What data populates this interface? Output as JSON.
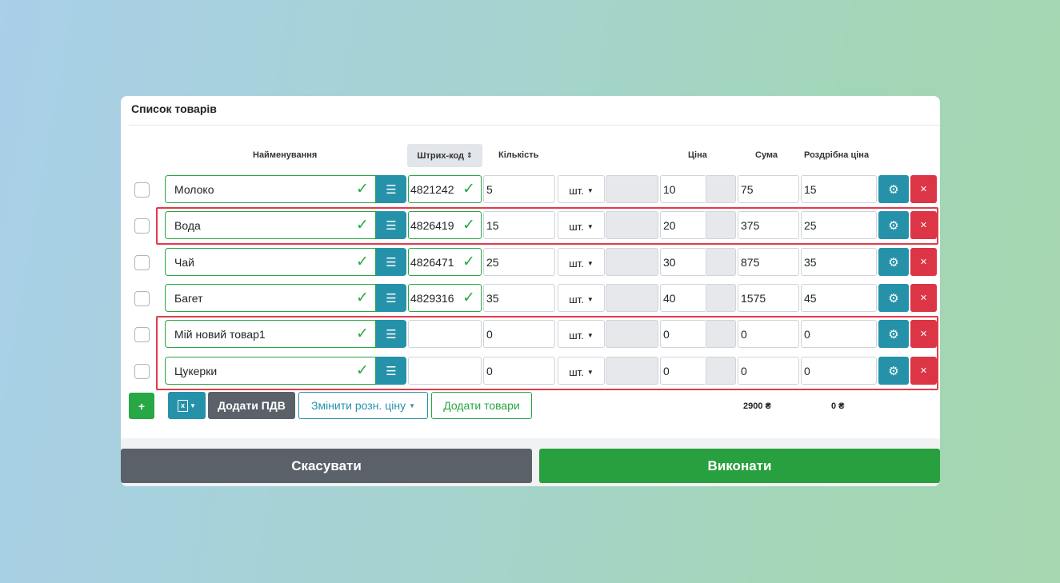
{
  "panel": {
    "title": "Список товарів"
  },
  "headers": {
    "name": "Найменування",
    "barcode": "Штрих-код",
    "quantity": "Кількість",
    "price": "Ціна",
    "sum": "Сума",
    "retail_price": "Роздрібна ціна"
  },
  "rows": [
    {
      "name": "Молоко",
      "barcode": "4821242",
      "quantity": "5",
      "unit": "шт.",
      "price": "10",
      "sum": "75",
      "retail": "15"
    },
    {
      "name": "Вода",
      "barcode": "4826419",
      "quantity": "15",
      "unit": "шт.",
      "price": "20",
      "sum": "375",
      "retail": "25"
    },
    {
      "name": "Чай",
      "barcode": "4826471",
      "quantity": "25",
      "unit": "шт.",
      "price": "30",
      "sum": "875",
      "retail": "35"
    },
    {
      "name": "Багет",
      "barcode": "4829316",
      "quantity": "35",
      "unit": "шт.",
      "price": "40",
      "sum": "1575",
      "retail": "45"
    },
    {
      "name": "Мій новий товар1",
      "barcode": "",
      "quantity": "0",
      "unit": "шт.",
      "price": "0",
      "sum": "0",
      "retail": "0"
    },
    {
      "name": "Цукерки",
      "barcode": "",
      "quantity": "0",
      "unit": "шт.",
      "price": "0",
      "sum": "0",
      "retail": "0"
    }
  ],
  "toolbar": {
    "add_label": "+",
    "add_vat_label": "Додати ПДВ",
    "change_retail_label": "Змінити розн. ціну",
    "add_goods_label": "Додати товари"
  },
  "totals": {
    "sum": "2900 ₴",
    "retail": "0 ₴"
  },
  "footer": {
    "cancel_label": "Скасувати",
    "submit_label": "Виконати"
  },
  "colors": {
    "accent_teal": "#2592aa",
    "success": "#28a745",
    "danger": "#dc3545",
    "secondary": "#5a6169",
    "highlight": "#e03c4a"
  },
  "icons": [
    "check-icon",
    "list-icon",
    "sort-icon",
    "caret-down-icon",
    "gear-icon",
    "close-icon",
    "excel-icon",
    "plus-icon"
  ]
}
